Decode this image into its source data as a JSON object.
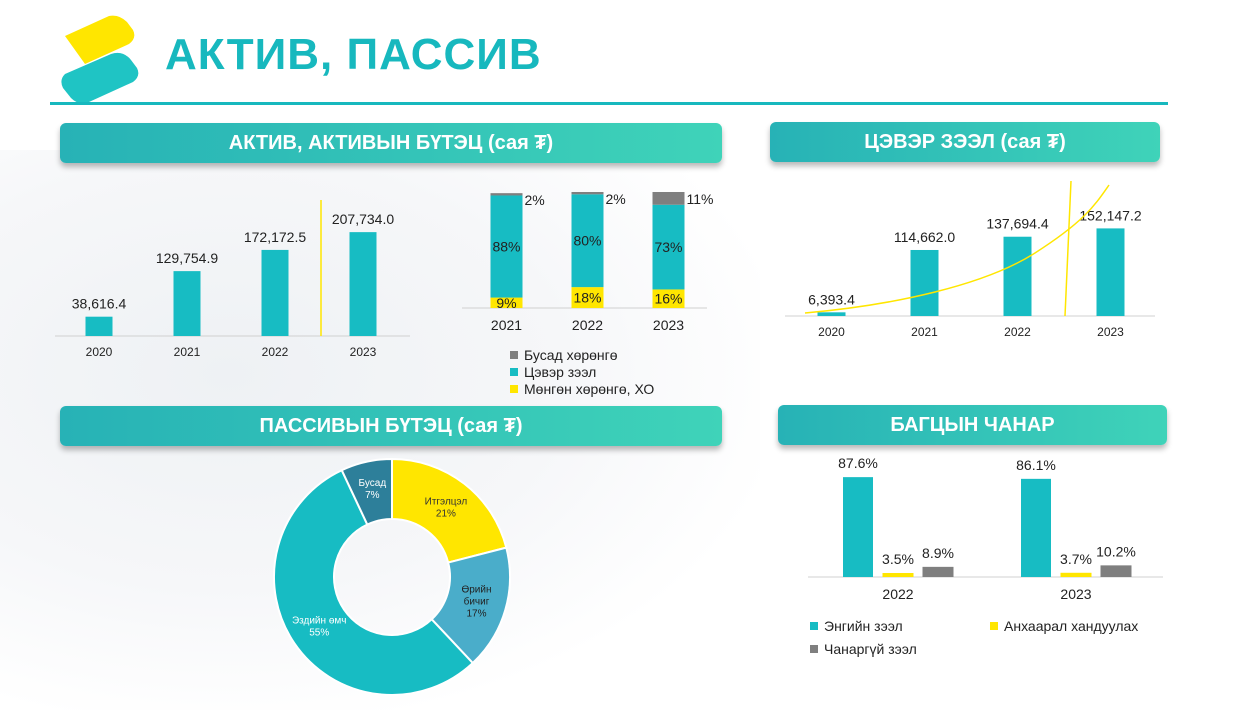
{
  "page": {
    "title": "АКТИВ, ПАССИВ"
  },
  "colors": {
    "teal": "#17bcc3",
    "yellow": "#ffe600",
    "gray": "#7f7f7f",
    "donut_blue": "#4aadca",
    "donut_dark": "#2d7f9a",
    "accent": "#17b8be"
  },
  "sections": {
    "assets": "АКТИВ, АКТИВЫН БҮТЭЦ (сая ₮)",
    "net_loans": "ЦЭВЭР ЗЭЭЛ (сая ₮)",
    "liabilities": "ПАССИВЫН БҮТЭЦ (сая ₮)",
    "portfolio": "БАГЦЫН ЧАНАР"
  },
  "chart_data": [
    {
      "id": "assets",
      "type": "bar",
      "categories": [
        "2020",
        "2021",
        "2022",
        "2023"
      ],
      "values": [
        38616.4,
        129754.9,
        172172.5,
        207734.0
      ],
      "labels": [
        "38,616.4",
        "129,754.9",
        "172,172.5",
        "207,734.0"
      ],
      "ylim": [
        0,
        210000
      ]
    },
    {
      "id": "asset_structure",
      "type": "bar",
      "stacked": true,
      "percent": true,
      "categories": [
        "2021",
        "2022",
        "2023"
      ],
      "series": [
        {
          "name": "Мөнгөн хөрөнгө, ХО",
          "color": "#ffe600",
          "values": [
            9,
            18,
            16
          ],
          "labels": [
            "9%",
            "18%",
            "16%"
          ]
        },
        {
          "name": "Цэвэр зээл",
          "color": "#17bcc3",
          "values": [
            88,
            80,
            73
          ],
          "labels": [
            "88%",
            "80%",
            "73%"
          ]
        },
        {
          "name": "Бусад хөрөнгө",
          "color": "#7f7f7f",
          "values": [
            2,
            2,
            11
          ],
          "labels": [
            "2%",
            "2%",
            "11%"
          ]
        }
      ],
      "legend_order": [
        "Бусад хөрөнгө",
        "Цэвэр зээл",
        "Мөнгөн хөрөнгө, ХО"
      ],
      "legend_placement": "bottom-left"
    },
    {
      "id": "net_loans",
      "type": "bar",
      "categories": [
        "2020",
        "2021",
        "2022",
        "2023"
      ],
      "values": [
        6393.4,
        114662.0,
        137694.4,
        152147.2
      ],
      "labels": [
        "6,393.4",
        "114,662.0",
        "137,694.4",
        "152,147.2"
      ],
      "ylim": [
        0,
        165000
      ],
      "trendline": "exponential"
    },
    {
      "id": "liability_structure",
      "type": "pie",
      "donut": true,
      "slices": [
        {
          "name": "Итгэлцэл",
          "value": 21,
          "label": "21%",
          "color": "#ffe600",
          "label_color": "#333333"
        },
        {
          "name": "Өрийн бичиг",
          "value": 17,
          "label": "17%",
          "color": "#4aadca",
          "label_color": "#222222"
        },
        {
          "name": "Эздийн өмч",
          "value": 55,
          "label": "55%",
          "color": "#17bcc3",
          "label_color": "#ffffff"
        },
        {
          "name": "Бусад",
          "value": 7,
          "label": "7%",
          "color": "#2d7f9a",
          "label_color": "#ffffff"
        }
      ]
    },
    {
      "id": "portfolio_quality",
      "type": "bar",
      "categories": [
        "2022",
        "2023"
      ],
      "series": [
        {
          "name": "Энгийн зээл",
          "color": "#17bcc3",
          "values": [
            87.6,
            86.1
          ],
          "labels": [
            "87.6%",
            "86.1%"
          ]
        },
        {
          "name": "Анхаарал хандуулах",
          "color": "#ffe600",
          "values": [
            3.5,
            3.7
          ],
          "labels": [
            "3.5%",
            "3.7%"
          ]
        },
        {
          "name": "Чанаргүй зээл",
          "color": "#7f7f7f",
          "values": [
            8.9,
            10.2
          ],
          "labels": [
            "8.9%",
            "10.2%"
          ]
        }
      ],
      "ylim": [
        0,
        100
      ],
      "legend_placement": "bottom"
    }
  ]
}
